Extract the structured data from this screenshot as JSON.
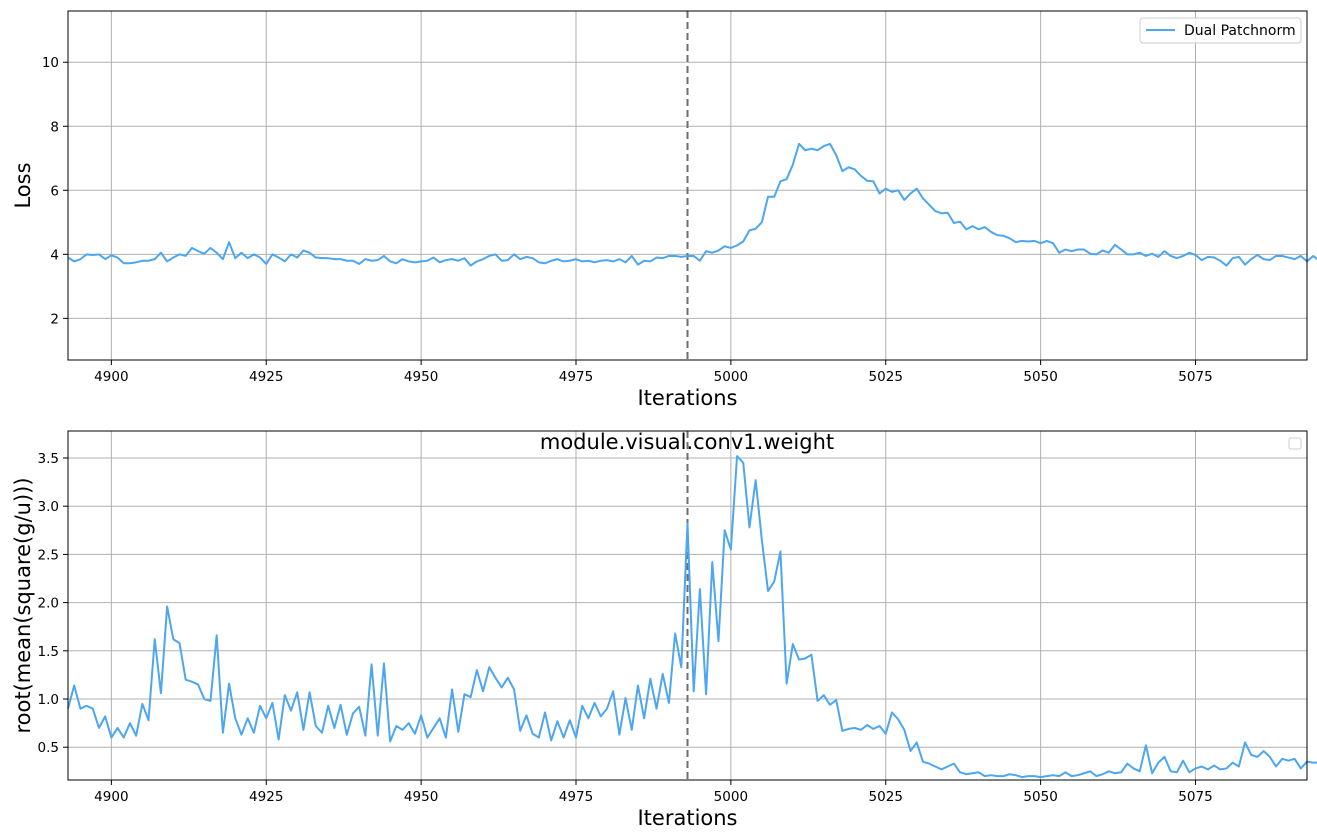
{
  "chart_data": [
    {
      "type": "line",
      "xlabel": "Iterations",
      "ylabel": "Loss",
      "title": "",
      "xlim": [
        4893,
        5093
      ],
      "ylim": [
        0.7,
        11.6
      ],
      "xticks": [
        "4900",
        "4925",
        "4950",
        "4975",
        "5000",
        "5025",
        "5050",
        "5075"
      ],
      "yticks": [
        "2",
        "4",
        "6",
        "8",
        "10"
      ],
      "grid": true,
      "legend_position": "top-right",
      "marker_line": 4993,
      "color": "#4da6f0",
      "series": [
        {
          "name": "Dual Patchnorm",
          "x_start": 4893,
          "values": [
            3.9,
            3.78,
            3.85,
            4.0,
            3.98,
            4.0,
            3.85,
            3.97,
            3.9,
            3.72,
            3.72,
            3.75,
            3.8,
            3.8,
            3.85,
            4.05,
            3.78,
            3.9,
            4.0,
            3.95,
            4.2,
            4.1,
            4.02,
            4.2,
            4.05,
            3.85,
            4.38,
            3.88,
            4.05,
            3.88,
            4.0,
            3.9,
            3.7,
            4.0,
            3.9,
            3.78,
            4.0,
            3.9,
            4.12,
            4.05,
            3.9,
            3.88,
            3.88,
            3.85,
            3.85,
            3.8,
            3.8,
            3.7,
            3.85,
            3.8,
            3.82,
            3.95,
            3.78,
            3.72,
            3.85,
            3.78,
            3.75,
            3.78,
            3.8,
            3.9,
            3.75,
            3.82,
            3.85,
            3.8,
            3.88,
            3.65,
            3.78,
            3.85,
            3.95,
            4.0,
            3.8,
            3.82,
            4.0,
            3.85,
            3.92,
            3.88,
            3.75,
            3.72,
            3.8,
            3.85,
            3.78,
            3.8,
            3.85,
            3.78,
            3.8,
            3.75,
            3.8,
            3.82,
            3.78,
            3.85,
            3.75,
            3.95,
            3.68,
            3.8,
            3.78,
            3.9,
            3.88,
            3.95,
            3.95,
            3.92,
            3.95,
            3.95,
            3.8,
            4.1,
            4.05,
            4.12,
            4.25,
            4.2,
            4.28,
            4.4,
            4.75,
            4.8,
            5.0,
            5.8,
            5.8,
            6.28,
            6.35,
            6.8,
            7.45,
            7.25,
            7.3,
            7.25,
            7.38,
            7.45,
            7.1,
            6.6,
            6.72,
            6.65,
            6.45,
            6.3,
            6.28,
            5.9,
            6.05,
            5.95,
            6.0,
            5.7,
            5.9,
            6.05,
            5.75,
            5.55,
            5.35,
            5.28,
            5.3,
            4.98,
            5.02,
            4.78,
            4.88,
            4.78,
            4.85,
            4.7,
            4.6,
            4.58,
            4.5,
            4.38,
            4.42,
            4.4,
            4.42,
            4.35,
            4.42,
            4.35,
            4.05,
            4.15,
            4.1,
            4.15,
            4.15,
            4.02,
            4.0,
            4.12,
            4.05,
            4.3,
            4.15,
            4.0,
            4.0,
            4.05,
            3.95,
            4.02,
            3.92,
            4.1,
            3.95,
            3.88,
            3.95,
            4.05,
            3.98,
            3.82,
            3.92,
            3.9,
            3.8,
            3.65,
            3.88,
            3.92,
            3.68,
            3.85,
            3.98,
            3.85,
            3.82,
            3.95,
            3.95,
            3.9,
            3.85,
            3.95,
            3.78,
            3.95,
            3.8,
            3.85
          ]
        }
      ]
    },
    {
      "type": "line",
      "title": "module.visual.conv1.weight",
      "xlabel": "Iterations",
      "ylabel": "root(mean(square(g/u)))",
      "xlim": [
        4893,
        5093
      ],
      "ylim": [
        0.16,
        3.78
      ],
      "xticks": [
        "4900",
        "4925",
        "4950",
        "4975",
        "5000",
        "5025",
        "5050",
        "5075"
      ],
      "yticks": [
        "0.5",
        "1.0",
        "1.5",
        "2.0",
        "2.5",
        "3.0",
        "3.5"
      ],
      "grid": true,
      "legend_position": "top-right",
      "marker_line": 4993,
      "color": "#4da6f0",
      "series": [
        {
          "x_start": 4893,
          "values": [
            0.9,
            1.14,
            0.9,
            0.93,
            0.9,
            0.7,
            0.82,
            0.6,
            0.7,
            0.6,
            0.75,
            0.62,
            0.95,
            0.78,
            1.62,
            1.06,
            1.96,
            1.62,
            1.58,
            1.2,
            1.18,
            1.15,
            1.0,
            0.98,
            1.66,
            0.65,
            1.16,
            0.8,
            0.63,
            0.8,
            0.65,
            0.93,
            0.8,
            0.96,
            0.58,
            1.04,
            0.88,
            1.07,
            0.68,
            1.07,
            0.72,
            0.65,
            0.93,
            0.7,
            0.94,
            0.63,
            0.85,
            0.92,
            0.62,
            1.36,
            0.62,
            1.37,
            0.56,
            0.72,
            0.68,
            0.75,
            0.64,
            0.83,
            0.6,
            0.7,
            0.8,
            0.6,
            1.1,
            0.66,
            1.05,
            1.02,
            1.3,
            1.08,
            1.33,
            1.22,
            1.12,
            1.22,
            1.1,
            0.67,
            0.83,
            0.64,
            0.6,
            0.86,
            0.57,
            0.77,
            0.6,
            0.78,
            0.6,
            0.93,
            0.8,
            0.96,
            0.82,
            0.9,
            1.08,
            0.63,
            1.01,
            0.68,
            1.14,
            0.8,
            1.21,
            0.9,
            1.26,
            0.96,
            1.68,
            1.33,
            2.82,
            1.08,
            2.14,
            1.05,
            2.42,
            1.6,
            2.75,
            2.55,
            3.52,
            3.45,
            2.78,
            3.27,
            2.65,
            2.12,
            2.22,
            2.53,
            1.16,
            1.57,
            1.41,
            1.42,
            1.46,
            0.98,
            1.04,
            0.94,
            0.99,
            0.67,
            0.69,
            0.7,
            0.68,
            0.73,
            0.69,
            0.72,
            0.64,
            0.86,
            0.79,
            0.68,
            0.46,
            0.55,
            0.35,
            0.33,
            0.3,
            0.27,
            0.3,
            0.33,
            0.24,
            0.22,
            0.23,
            0.24,
            0.2,
            0.21,
            0.2,
            0.2,
            0.22,
            0.21,
            0.19,
            0.2,
            0.2,
            0.19,
            0.2,
            0.21,
            0.2,
            0.24,
            0.2,
            0.21,
            0.23,
            0.25,
            0.2,
            0.22,
            0.25,
            0.23,
            0.24,
            0.33,
            0.28,
            0.25,
            0.52,
            0.23,
            0.34,
            0.4,
            0.25,
            0.24,
            0.36,
            0.24,
            0.28,
            0.3,
            0.27,
            0.31,
            0.27,
            0.28,
            0.34,
            0.3,
            0.55,
            0.42,
            0.4,
            0.46,
            0.4,
            0.3,
            0.38,
            0.36,
            0.38,
            0.28,
            0.35,
            0.34,
            0.34
          ]
        }
      ]
    }
  ]
}
